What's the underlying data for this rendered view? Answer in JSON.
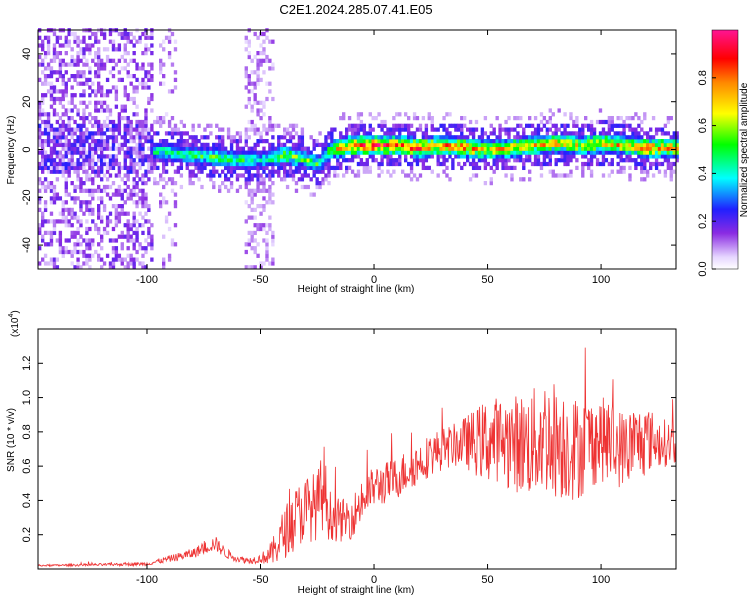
{
  "title": "C2E1.2024.285.07.41.E05",
  "chart_data": [
    {
      "type": "heatmap",
      "xlabel": "Height of straight line (km)",
      "ylabel": "Frequency (Hz)",
      "xlim": [
        -148,
        133
      ],
      "ylim": [
        -50,
        50
      ],
      "xticks": [
        -100,
        -50,
        0,
        50,
        100
      ],
      "yticks": [
        -40,
        -20,
        0,
        20,
        40
      ],
      "colorbar": {
        "label": "Normalized spectral amplitude",
        "range": [
          0,
          1
        ],
        "ticks": [
          "0.0",
          "0.2",
          "0.4",
          "0.6",
          "0.8"
        ],
        "tick_values": [
          0.0,
          0.2,
          0.4,
          0.6,
          0.8
        ]
      },
      "ridge": {
        "x": [
          -100,
          -90,
          -80,
          -70,
          -60,
          -50,
          -40,
          -30,
          -25,
          -20,
          -10,
          0,
          10,
          20,
          30,
          40,
          50,
          60,
          70,
          80,
          90,
          100,
          110,
          120,
          133
        ],
        "freq": [
          -1,
          -2,
          -3,
          -4,
          -5,
          -5,
          -3,
          -5,
          -7,
          -1,
          1,
          1,
          1,
          0,
          1,
          0,
          -1,
          0,
          1,
          2,
          1,
          2,
          1,
          0,
          0
        ],
        "peak_amplitude": [
          0.45,
          0.5,
          0.5,
          0.55,
          0.5,
          0.45,
          0.6,
          0.55,
          0.5,
          0.6,
          0.9,
          0.95,
          0.85,
          0.9,
          0.8,
          0.85,
          0.7,
          0.75,
          0.7,
          0.75,
          0.7,
          0.8,
          0.7,
          0.85,
          0.75
        ]
      }
    },
    {
      "type": "line",
      "xlabel": "Height of straight line (km)",
      "ylabel": "SNR (10 * v/v)",
      "y_multiplier": "(x10",
      "y_multiplier_exp": "4",
      "xlim": [
        -148,
        133
      ],
      "ylim": [
        0,
        14000
      ],
      "xticks": [
        -100,
        -50,
        0,
        50,
        100
      ],
      "yticks": [
        2000,
        4000,
        6000,
        8000,
        10000,
        12000
      ],
      "ytick_labels": [
        "0.2",
        "0.4",
        "0.6",
        "0.8",
        "1.0",
        "1.2"
      ],
      "series": [
        {
          "color": "#ee3333",
          "x": [
            -148,
            -120,
            -100,
            -90,
            -80,
            -75,
            -70,
            -65,
            -60,
            -55,
            -50,
            -45,
            -40,
            -35,
            -30,
            -25,
            -22,
            -20,
            -15,
            -10,
            -5,
            0,
            5,
            10,
            15,
            20,
            25,
            30,
            35,
            40,
            45,
            50,
            55,
            60,
            65,
            70,
            75,
            80,
            85,
            90,
            95,
            100,
            105,
            110,
            115,
            120,
            125,
            133
          ],
          "y": [
            200,
            250,
            300,
            600,
            900,
            1200,
            1500,
            900,
            600,
            500,
            600,
            900,
            2000,
            3000,
            3500,
            3700,
            4800,
            3200,
            2800,
            3000,
            4000,
            4800,
            5000,
            5300,
            5800,
            6200,
            6700,
            7000,
            7200,
            7400,
            7400,
            7500,
            7600,
            7400,
            7300,
            7300,
            7800,
            7600,
            7200,
            7000,
            7400,
            7600,
            7200,
            7000,
            7300,
            7600,
            7400,
            7300
          ],
          "spread": [
            100,
            150,
            200,
            400,
            600,
            700,
            900,
            600,
            400,
            400,
            500,
            1500,
            3000,
            3500,
            4000,
            4000,
            5000,
            3000,
            2500,
            2500,
            2500,
            2500,
            2500,
            2500,
            2500,
            2500,
            2500,
            2500,
            2500,
            3000,
            4000,
            5000,
            5000,
            5500,
            6000,
            6500,
            7000,
            7000,
            6500,
            6000,
            5500,
            5000,
            5000,
            4500,
            4500,
            4000,
            3000,
            2500
          ]
        }
      ]
    }
  ]
}
